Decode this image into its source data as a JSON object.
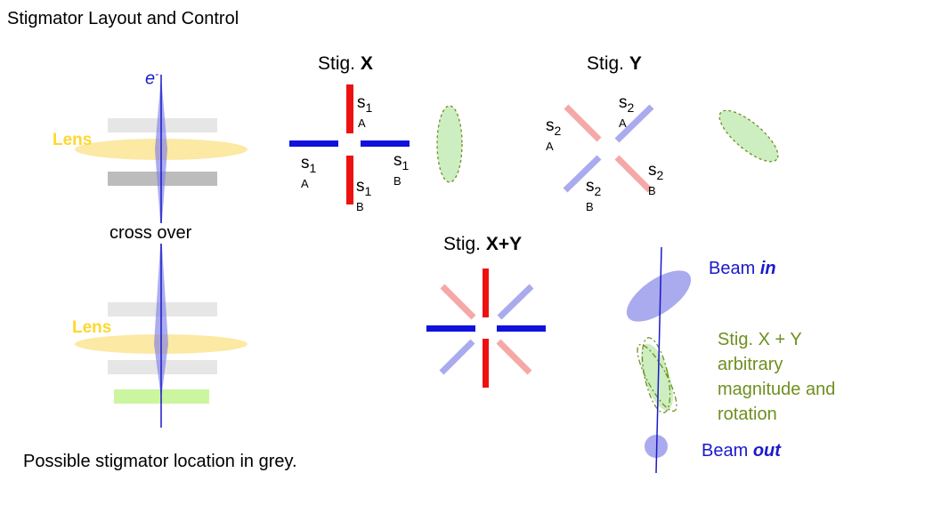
{
  "title": "Stigmator Layout and Control",
  "column": {
    "electron_label": "e",
    "electron_sup": "-",
    "lens_upper": "Lens",
    "lens_lower": "Lens",
    "crossover": "cross over",
    "note": "Possible stigmator location in grey."
  },
  "stig_x": {
    "prefix": "Stig. ",
    "axis": "X",
    "labels": {
      "a_top": {
        "s": "s",
        "n": "1",
        "sub": "A"
      },
      "a_left": {
        "s": "s",
        "n": "1",
        "sub": "A"
      },
      "b_right": {
        "s": "s",
        "n": "1",
        "sub": "B"
      },
      "b_bottom": {
        "s": "s",
        "n": "1",
        "sub": "B"
      }
    }
  },
  "stig_y": {
    "prefix": "Stig. ",
    "axis": "Y",
    "labels": {
      "a_topleft": {
        "s": "s",
        "n": "2",
        "sub": "A"
      },
      "a_topright": {
        "s": "s",
        "n": "2",
        "sub": "A"
      },
      "b_bottomleft": {
        "s": "s",
        "n": "2",
        "sub": "B"
      },
      "b_bottomright": {
        "s": "s",
        "n": "2",
        "sub": "B"
      }
    }
  },
  "stig_xy": {
    "prefix": "Stig. ",
    "axis": "X+Y"
  },
  "beam": {
    "in_prefix": "Beam ",
    "in_word": "in",
    "out_prefix": "Beam ",
    "out_word": "out",
    "xy_desc": "Stig. X + Y arbitrary magnitude and rotation"
  },
  "colors": {
    "red": "#ee1111",
    "blue": "#1111dd",
    "pink": "#f5a8a8",
    "lavender": "#aaaaee",
    "lens_yellow": "#fbe9a4",
    "green_fill": "#cdeec0",
    "green_dash": "#6f8f1f",
    "grey_plate": "#bcbcbc"
  }
}
